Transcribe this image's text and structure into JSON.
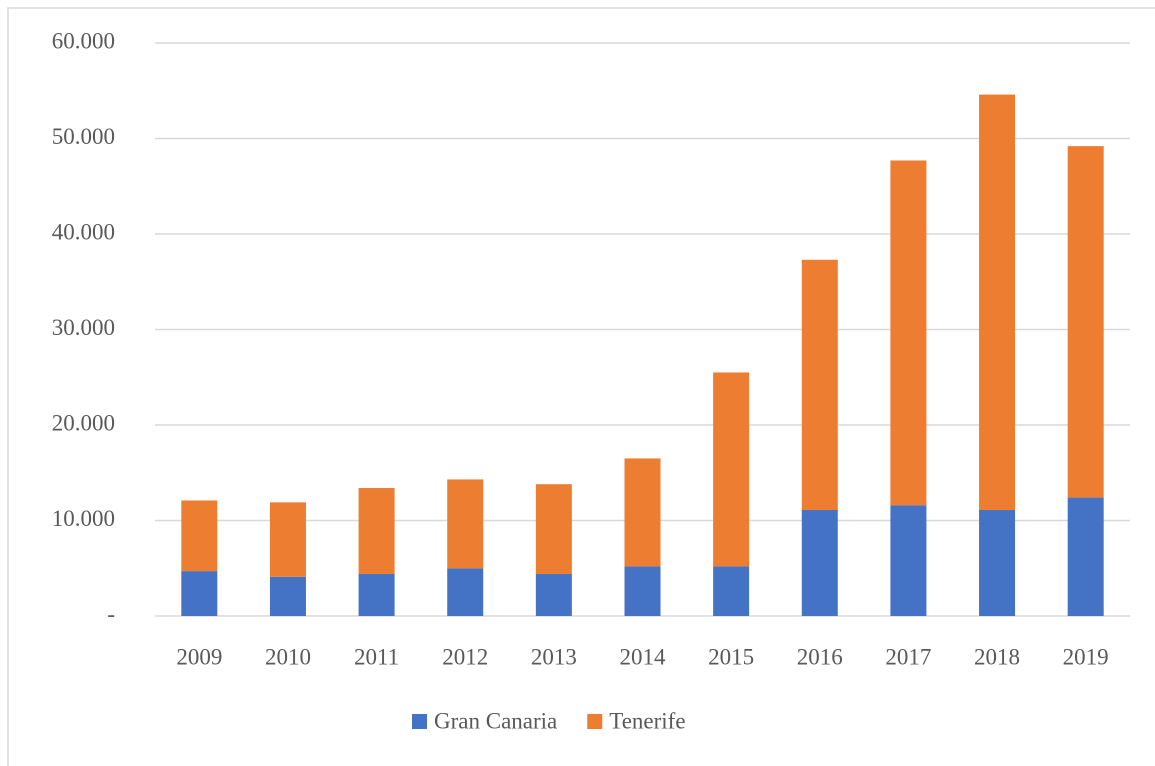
{
  "chart_data": {
    "type": "stacked_bar",
    "categories": [
      "2009",
      "2010",
      "2011",
      "2012",
      "2013",
      "2014",
      "2015",
      "2016",
      "2017",
      "2018",
      "2019"
    ],
    "series": [
      {
        "name": "Gran Canaria",
        "color": "#4472c4",
        "values": [
          4700,
          4100,
          4400,
          5000,
          4400,
          5200,
          5200,
          11100,
          11600,
          11100,
          12400
        ]
      },
      {
        "name": "Tenerife",
        "color": "#ed7d31",
        "values": [
          7400,
          7800,
          9000,
          9300,
          9400,
          11300,
          20300,
          26200,
          36100,
          43500,
          36800
        ]
      }
    ],
    "ylim": [
      0,
      60000
    ],
    "yticks": [
      {
        "value": 0,
        "label": "-"
      },
      {
        "value": 10000,
        "label": "10.000"
      },
      {
        "value": 20000,
        "label": "20.000"
      },
      {
        "value": 30000,
        "label": "30.000"
      },
      {
        "value": 40000,
        "label": "40.000"
      },
      {
        "value": 50000,
        "label": "50.000"
      },
      {
        "value": 60000,
        "label": "60.000"
      }
    ],
    "grid": true,
    "legend": "bottom"
  }
}
